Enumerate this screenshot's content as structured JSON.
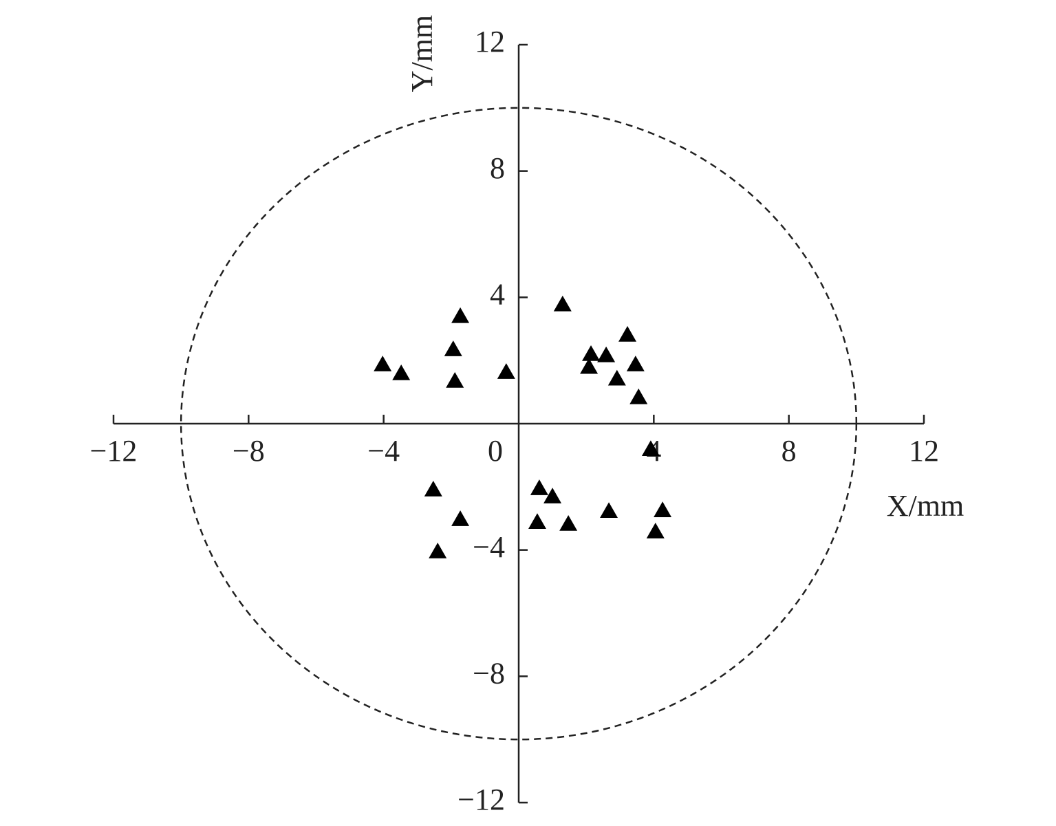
{
  "chart_data": {
    "type": "scatter",
    "x_label": "X/mm",
    "y_label": "Y/mm",
    "marker": "triangle",
    "color": "#000000",
    "circle_radius": 10,
    "xlim": [
      -12,
      12
    ],
    "ylim": [
      -12,
      12
    ],
    "xticks": [
      {
        "value": -12,
        "label": "−12"
      },
      {
        "value": -8,
        "label": "−8"
      },
      {
        "value": -4,
        "label": "−4"
      },
      0,
      4,
      8,
      12
    ],
    "yticks": [
      {
        "value": -12,
        "label": "−12"
      },
      {
        "value": -8,
        "label": "−8"
      },
      {
        "value": -4,
        "label": "−4"
      },
      4,
      8,
      12
    ],
    "x": [
      -4.03,
      -3.48,
      -1.73,
      -1.94,
      -1.89,
      -0.37,
      1.3,
      2.14,
      2.59,
      2.08,
      3.22,
      3.46,
      2.91,
      3.55,
      3.91,
      -2.53,
      -1.73,
      -2.4,
      0.61,
      1.0,
      0.55,
      1.47,
      2.67,
      4.26,
      4.05
    ],
    "values": [
      1.87,
      1.59,
      3.4,
      2.35,
      1.35,
      1.63,
      3.77,
      2.2,
      2.16,
      1.79,
      2.81,
      1.87,
      1.42,
      0.83,
      -0.81,
      -2.09,
      -3.03,
      -4.05,
      -2.05,
      -2.31,
      -3.12,
      -3.18,
      -2.77,
      -2.75,
      -3.42
    ]
  }
}
